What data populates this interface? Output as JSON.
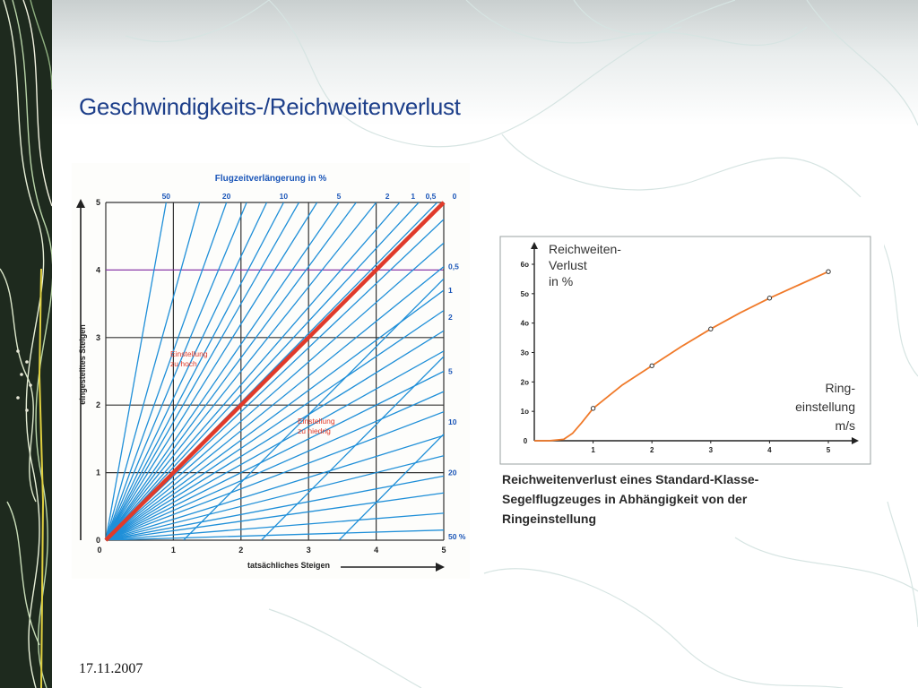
{
  "slide": {
    "title": "Geschwindigkeits-/Reichweitenverlust",
    "date": "17.11.2007"
  },
  "colors": {
    "title": "#1d3f8a",
    "blue_lines": "#1f8fd8",
    "red_line": "#e03a2a",
    "axis_blue": "#1b56b8",
    "orange_curve": "#f07a2a"
  },
  "chart_data": [
    {
      "type": "line",
      "title": "Flugzeitverlängerung  in  %",
      "xlabel": "tatsächliches Steigen",
      "ylabel": "eingestelltes Steigen",
      "xlim": [
        0,
        5
      ],
      "ylim": [
        0,
        5
      ],
      "x_ticks": [
        "0",
        "1",
        "2",
        "3",
        "4",
        "5"
      ],
      "y_ticks": [
        "0",
        "1",
        "2",
        "3",
        "4",
        "5"
      ],
      "grid": true,
      "top_labels": [
        "50",
        "20",
        "10",
        "5",
        "2",
        "1",
        "0,5",
        "0"
      ],
      "right_labels": [
        "0,5",
        "1",
        "2",
        "5",
        "10",
        "20",
        "50 %"
      ],
      "fan_slopes": [
        5.6,
        3.6,
        2.8,
        2.4,
        2.1,
        1.9,
        1.75,
        1.6,
        1.45,
        1.35,
        1.25,
        1.15,
        1.08,
        1.02,
        0.95,
        0.88,
        0.81,
        0.74,
        0.68,
        0.62,
        0.56,
        0.5,
        0.44,
        0.38,
        0.31,
        0.25,
        0.19,
        0.14,
        0.08,
        0.03
      ],
      "series": [
        {
          "x": [
            0,
            5
          ],
          "y": [
            0,
            5
          ]
        }
      ],
      "annotations": [
        "Einstellung\nzu hoch",
        "Einstellung\nzu niedrig"
      ]
    },
    {
      "type": "line",
      "title": "",
      "ylabel": "Reichweiten-\nVerlust\nin  %",
      "xlabel": "Ring-\neinstellung\nm/s",
      "xlim": [
        0,
        5
      ],
      "ylim": [
        0,
        60
      ],
      "x_ticks": [
        "1",
        "2",
        "3",
        "4",
        "5"
      ],
      "y_ticks": [
        "1o",
        "2o",
        "3o",
        "4o",
        "5o",
        "6o"
      ],
      "grid": false,
      "series": [
        {
          "x": [
            0,
            0.25,
            0.5,
            0.65,
            0.8,
            1.0,
            1.5,
            2.0,
            2.5,
            3.0,
            3.5,
            4.0,
            4.5,
            5.0
          ],
          "y": [
            0,
            0,
            0.5,
            2.5,
            6,
            11,
            19,
            25.5,
            32,
            38,
            43.5,
            48.5,
            53,
            57.5
          ]
        }
      ],
      "markers": {
        "x": [
          1,
          2,
          3,
          4,
          5
        ],
        "y": [
          11,
          25.5,
          38,
          48.5,
          57.5
        ]
      },
      "caption": "Reichweitenverlust eines Standard-Klasse-\nSegelflugzeuges in Abhängigkeit von der\nRingeinstellung"
    }
  ]
}
